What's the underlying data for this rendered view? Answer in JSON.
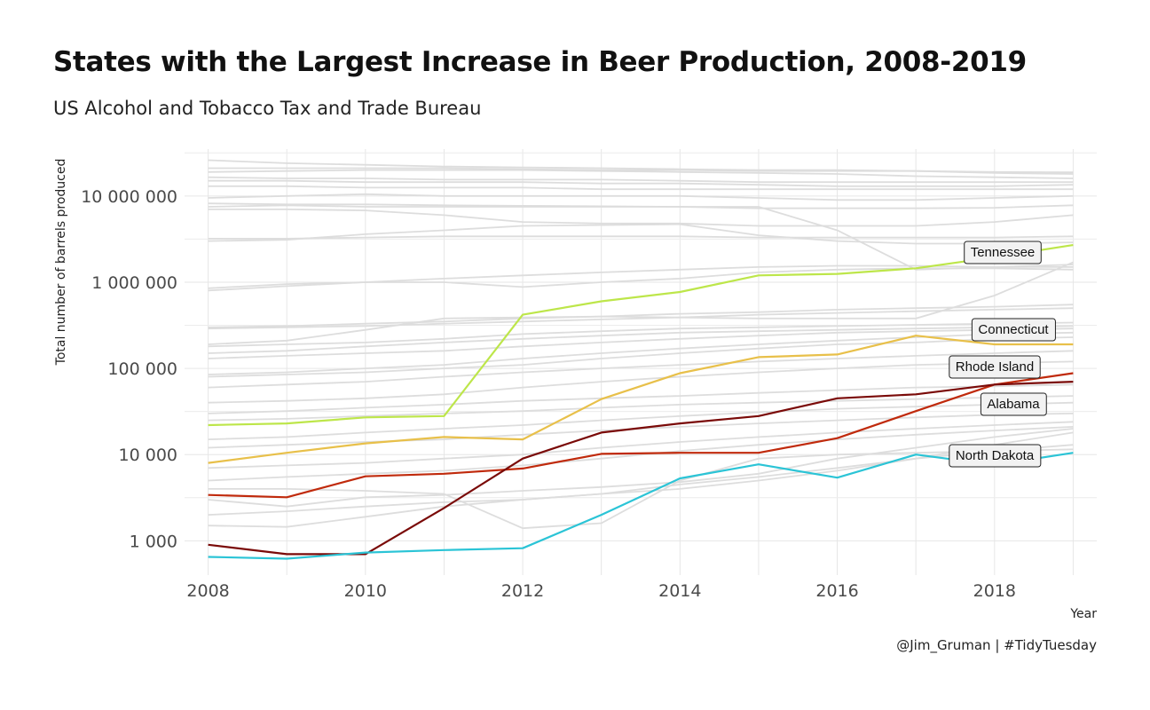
{
  "header": {
    "title": "States with the Largest Increase in Beer Production, 2008-2019",
    "subtitle": "US Alcohol and Tobacco Tax and Trade Bureau",
    "caption": "@Jim_Gruman | #TidyTuesday"
  },
  "chart_data": {
    "type": "line",
    "title": "States with the Largest Increase in Beer Production, 2008-2019",
    "subtitle": "US Alcohol and Tobacco Tax and Trade Bureau",
    "xlabel": "Year",
    "ylabel": "Total number of barrels produced",
    "y_scale": "log10",
    "xlim": [
      2007.7,
      2019.3
    ],
    "ylim": [
      400,
      35000000
    ],
    "x_ticks": [
      2008,
      2010,
      2012,
      2014,
      2016,
      2018
    ],
    "x_tick_labels": [
      "2008",
      "2010",
      "2012",
      "2014",
      "2016",
      "2018"
    ],
    "y_ticks": [
      1000,
      10000,
      100000,
      1000000,
      10000000
    ],
    "y_tick_labels": [
      "1 000",
      "10 000",
      "100 000",
      "1 000 000",
      "10 000 000"
    ],
    "grid": true,
    "x": [
      2008,
      2009,
      2010,
      2011,
      2012,
      2013,
      2014,
      2015,
      2016,
      2017,
      2018,
      2019
    ],
    "colors": {
      "background_lines": "#dddddd",
      "Tennessee": "#bde64a",
      "Connecticut": "#e8c04a",
      "Rhode Island": "#c02a0c",
      "Alabama": "#7a0a08",
      "North Dakota": "#2bc4d6"
    },
    "series": [
      {
        "name": "Tennessee",
        "values": [
          22000,
          23000,
          27000,
          28000,
          420000,
          600000,
          770000,
          1200000,
          1250000,
          1450000,
          1950000,
          2700000
        ]
      },
      {
        "name": "Connecticut",
        "values": [
          8000,
          10500,
          13500,
          16000,
          15000,
          44000,
          88000,
          135000,
          145000,
          240000,
          190000,
          190000
        ]
      },
      {
        "name": "Rhode Island",
        "values": [
          3400,
          3200,
          5600,
          6000,
          6900,
          10200,
          10500,
          10500,
          15500,
          32000,
          65000,
          88000
        ]
      },
      {
        "name": "Alabama",
        "values": [
          900,
          700,
          700,
          2400,
          9000,
          18000,
          23000,
          28000,
          45000,
          50000,
          65000,
          70000
        ]
      },
      {
        "name": "North Dakota",
        "values": [
          650,
          620,
          730,
          780,
          820,
          2000,
          5300,
          7700,
          5400,
          10000,
          7600,
          10500
        ]
      }
    ],
    "background_series": [
      {
        "values": [
          26000000,
          24000000,
          23000000,
          22000000,
          21500000,
          21000000,
          20500000,
          20000000,
          20000000,
          19500000,
          19000000,
          18800000
        ]
      },
      {
        "values": [
          21000000,
          21000000,
          21000000,
          21000000,
          20500000,
          20000000,
          20000000,
          19500000,
          19500000,
          19500000,
          18500000,
          18000000
        ]
      },
      {
        "values": [
          19000000,
          19500000,
          20000000,
          20000000,
          20000000,
          19500000,
          19000000,
          18500000,
          18000000,
          17000000,
          16500000,
          16000000
        ]
      },
      {
        "values": [
          16500000,
          16000000,
          16000000,
          15500000,
          15500000,
          15500000,
          15000000,
          14500000,
          14500000,
          14500000,
          14500000,
          14500000
        ]
      },
      {
        "values": [
          15000000,
          15000000,
          14500000,
          14500000,
          14500000,
          14000000,
          14000000,
          13500000,
          13000000,
          13000000,
          13000000,
          13500000
        ]
      },
      {
        "values": [
          13000000,
          13000000,
          12500000,
          12500000,
          12500000,
          12000000,
          12000000,
          12000000,
          12000000,
          12000000,
          12000000,
          12000000
        ]
      },
      {
        "values": [
          9500000,
          10000000,
          10500000,
          10000000,
          10000000,
          10000000,
          10000000,
          9500000,
          9000000,
          9000000,
          9500000,
          10000000
        ]
      },
      {
        "values": [
          8200000,
          8000000,
          8000000,
          7800000,
          7700000,
          7600000,
          7500000,
          7200000,
          7200000,
          7200000,
          7300000,
          7800000
        ]
      },
      {
        "values": [
          7500000,
          7800000,
          7500000,
          7500000,
          7500000,
          7500000,
          7500000,
          7500000,
          4000000,
          1400000,
          1500000,
          1600000
        ]
      },
      {
        "values": [
          7000000,
          7000000,
          6800000,
          6000000,
          5000000,
          4800000,
          4800000,
          4500000,
          4500000,
          4500000,
          5000000,
          6000000
        ]
      },
      {
        "values": [
          3200000,
          3200000,
          3300000,
          3400000,
          3400000,
          3400000,
          3400000,
          3300000,
          3300000,
          3300000,
          3300000,
          3400000
        ]
      },
      {
        "values": [
          3000000,
          3100000,
          3600000,
          4000000,
          4500000,
          4600000,
          4700000,
          3500000,
          3000000,
          2800000,
          2800000,
          2900000
        ]
      },
      {
        "values": [
          850000,
          950000,
          1000000,
          1100000,
          1200000,
          1300000,
          1400000,
          1500000,
          1550000,
          1550000,
          1500000,
          1500000
        ]
      },
      {
        "values": [
          800000,
          900000,
          1000000,
          1000000,
          880000,
          1000000,
          1100000,
          1300000,
          1400000,
          1450000,
          1450000,
          1400000
        ]
      },
      {
        "values": [
          300000,
          310000,
          330000,
          350000,
          380000,
          400000,
          430000,
          450000,
          480000,
          500000,
          520000,
          550000
        ]
      },
      {
        "values": [
          290000,
          300000,
          310000,
          330000,
          350000,
          370000,
          390000,
          420000,
          440000,
          460000,
          480000,
          500000
        ]
      },
      {
        "values": [
          190000,
          210000,
          280000,
          380000,
          390000,
          400000,
          390000,
          380000,
          380000,
          380000,
          700000,
          1700000
        ]
      },
      {
        "values": [
          180000,
          190000,
          200000,
          220000,
          250000,
          270000,
          290000,
          300000,
          310000,
          320000,
          330000,
          340000
        ]
      },
      {
        "values": [
          150000,
          160000,
          180000,
          200000,
          220000,
          240000,
          260000,
          270000,
          280000,
          290000,
          300000,
          310000
        ]
      },
      {
        "values": [
          130000,
          140000,
          150000,
          160000,
          180000,
          200000,
          220000,
          240000,
          260000,
          270000,
          280000,
          290000
        ]
      },
      {
        "values": [
          85000,
          90000,
          100000,
          110000,
          130000,
          150000,
          170000,
          190000,
          210000,
          230000,
          250000,
          260000
        ]
      },
      {
        "values": [
          80000,
          85000,
          90000,
          100000,
          110000,
          130000,
          150000,
          170000,
          190000,
          200000,
          220000,
          230000
        ]
      },
      {
        "values": [
          60000,
          65000,
          70000,
          80000,
          90000,
          100000,
          110000,
          120000,
          130000,
          140000,
          150000,
          160000
        ]
      },
      {
        "values": [
          40000,
          42000,
          45000,
          50000,
          60000,
          70000,
          80000,
          90000,
          100000,
          110000,
          115000,
          120000
        ]
      },
      {
        "values": [
          30000,
          32000,
          35000,
          38000,
          42000,
          45000,
          48000,
          52000,
          56000,
          60000,
          62000,
          65000
        ]
      },
      {
        "values": [
          25000,
          26000,
          28000,
          30000,
          32000,
          35000,
          38000,
          40000,
          42000,
          44000,
          46000,
          48000
        ]
      },
      {
        "values": [
          15000,
          16000,
          18000,
          20000,
          22000,
          25000,
          28000,
          31000,
          34000,
          36000,
          38000,
          40000
        ]
      },
      {
        "values": [
          12000,
          13000,
          14000,
          15000,
          17000,
          19000,
          21000,
          23000,
          25000,
          27000,
          29000,
          30000
        ]
      },
      {
        "values": [
          7000,
          7500,
          8000,
          9000,
          10000,
          12000,
          14000,
          16000,
          18000,
          20000,
          22000,
          24000
        ]
      },
      {
        "values": [
          5000,
          5500,
          6000,
          6500,
          7500,
          9000,
          11000,
          13000,
          15000,
          17000,
          19000,
          21000
        ]
      },
      {
        "values": [
          3000,
          2500,
          3200,
          3400,
          3800,
          4200,
          4800,
          6000,
          9000,
          12000,
          16000,
          20000
        ]
      },
      {
        "values": [
          1500,
          1450,
          1900,
          2500,
          3000,
          3500,
          4000,
          5000,
          6500,
          9000,
          13000,
          18000
        ]
      },
      {
        "values": [
          4000,
          4000,
          3800,
          3500,
          1400,
          1600,
          5000,
          9000,
          10000,
          10500,
          11000,
          11500
        ]
      },
      {
        "values": [
          2000,
          2200,
          2500,
          2800,
          3000,
          3500,
          4500,
          5500,
          7000,
          9000,
          11000,
          13000
        ]
      }
    ],
    "labels": [
      {
        "series": "Tennessee",
        "text": "Tennessee"
      },
      {
        "series": "Connecticut",
        "text": "Connecticut"
      },
      {
        "series": "Rhode Island",
        "text": "Rhode Island"
      },
      {
        "series": "Alabama",
        "text": "Alabama"
      },
      {
        "series": "North Dakota",
        "text": "North Dakota"
      }
    ]
  }
}
